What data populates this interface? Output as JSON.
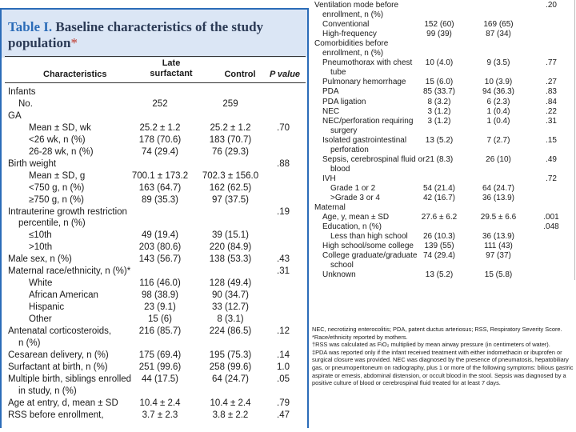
{
  "table": {
    "label": "Table I.",
    "title": "Baseline characteristics of the study population",
    "title_mark": "*"
  },
  "columns": {
    "characteristics": "Characteristics",
    "late": "Late surfactant",
    "control": "Control",
    "p": "P value"
  },
  "left_rows": [
    {
      "label": "Infants",
      "late": "",
      "control": "",
      "p": ""
    },
    {
      "label": "No.",
      "late": "252",
      "control": "259",
      "p": ""
    },
    {
      "label": "GA",
      "late": "",
      "control": "",
      "p": ""
    },
    {
      "label": "Mean ± SD, wk",
      "late": "25.2 ± 1.2",
      "control": "25.2 ± 1.2",
      "p": ".70"
    },
    {
      "label": "<26 wk, n (%)",
      "late": "178 (70.6)",
      "control": "183 (70.7)",
      "p": ""
    },
    {
      "label": "26-28 wk, n (%)",
      "late": "74 (29.4)",
      "control": "76 (29.3)",
      "p": ""
    },
    {
      "label": "Birth weight",
      "late": "",
      "control": "",
      "p": ".88"
    },
    {
      "label": "Mean ± SD, g",
      "late": "700.1 ± 173.2",
      "control": "702.3 ± 156.0",
      "p": ""
    },
    {
      "label": "<750 g, n (%)",
      "late": "163 (64.7)",
      "control": "162 (62.5)",
      "p": ""
    },
    {
      "label": "≥750 g, n (%)",
      "late": "89 (35.3)",
      "control": "97 (37.5)",
      "p": ""
    },
    {
      "label": "Intrauterine growth restriction",
      "late": "",
      "control": "",
      "p": ".19"
    },
    {
      "label": "percentile, n (%)",
      "late": "",
      "control": "",
      "p": ""
    },
    {
      "label": "≤10th",
      "late": "49 (19.4)",
      "control": "39 (15.1)",
      "p": ""
    },
    {
      "label": ">10th",
      "late": "203 (80.6)",
      "control": "220 (84.9)",
      "p": ""
    },
    {
      "label": "Male sex, n (%)",
      "late": "143 (56.7)",
      "control": "138 (53.3)",
      "p": ".43"
    },
    {
      "label": "Maternal race/ethnicity, n (%)*",
      "late": "",
      "control": "",
      "p": ".31"
    },
    {
      "label": "White",
      "late": "116 (46.0)",
      "control": "128 (49.4)",
      "p": ""
    },
    {
      "label": "African American",
      "late": "98 (38.9)",
      "control": "90 (34.7)",
      "p": ""
    },
    {
      "label": "Hispanic",
      "late": "23 (9.1)",
      "control": "33 (12.7)",
      "p": ""
    },
    {
      "label": "Other",
      "late": "15 (6)",
      "control": "8 (3.1)",
      "p": ""
    },
    {
      "label": "Antenatal corticosteroids,",
      "late": "216 (85.7)",
      "control": "224 (86.5)",
      "p": ".12"
    },
    {
      "label": "n (%)",
      "late": "",
      "control": "",
      "p": ""
    },
    {
      "label": "Cesarean delivery, n (%)",
      "late": "175 (69.4)",
      "control": "195 (75.3)",
      "p": ".14"
    },
    {
      "label": "Surfactant at birth, n (%)",
      "late": "251 (99.6)",
      "control": "258 (99.6)",
      "p": "1.0"
    },
    {
      "label": "Multiple birth, siblings enrolled",
      "late": "44 (17.5)",
      "control": "64 (24.7)",
      "p": ".05"
    },
    {
      "label": "in study, n (%)",
      "late": "",
      "control": "",
      "p": ""
    },
    {
      "label": "Age at entry, d, mean ± SD",
      "late": "10.4 ± 2.4",
      "control": "10.4 ± 2.4",
      "p": ".79"
    },
    {
      "label": "RSS before enrollment,",
      "late": "3.7 ± 2.3",
      "control": "3.8 ± 2.2",
      "p": ".47"
    }
  ],
  "right_rows": [
    {
      "label": "Ventilation mode before",
      "late": "",
      "control": "",
      "p": ".20"
    },
    {
      "label": "enrollment, n (%)",
      "late": "",
      "control": "",
      "p": ""
    },
    {
      "label": "Conventional",
      "late": "152 (60)",
      "control": "169 (65)",
      "p": ""
    },
    {
      "label": "High-frequency",
      "late": "99 (39)",
      "control": "87 (34)",
      "p": ""
    },
    {
      "label": "Comorbidities before",
      "late": "",
      "control": "",
      "p": ""
    },
    {
      "label": "enrollment, n (%)",
      "late": "",
      "control": "",
      "p": ""
    },
    {
      "label": "Pneumothorax with chest",
      "late": "10 (4.0)",
      "control": "9 (3.5)",
      "p": ".77"
    },
    {
      "label": "tube",
      "late": "",
      "control": "",
      "p": ""
    },
    {
      "label": "Pulmonary hemorrhage",
      "late": "15 (6.0)",
      "control": "10 (3.9)",
      "p": ".27"
    },
    {
      "label": "PDA",
      "late": "85 (33.7)",
      "control": "94 (36.3)",
      "p": ".83"
    },
    {
      "label": "PDA ligation",
      "late": "8 (3.2)",
      "control": "6 (2.3)",
      "p": ".84"
    },
    {
      "label": "NEC",
      "late": "3 (1.2)",
      "control": "1 (0.4)",
      "p": ".22"
    },
    {
      "label": "NEC/perforation requiring",
      "late": "3 (1.2)",
      "control": "1 (0.4)",
      "p": ".31"
    },
    {
      "label": "surgery",
      "late": "",
      "control": "",
      "p": ""
    },
    {
      "label": "Isolated gastrointestinal",
      "late": "13 (5.2)",
      "control": "7 (2.7)",
      "p": ".15"
    },
    {
      "label": "perforation",
      "late": "",
      "control": "",
      "p": ""
    },
    {
      "label": "Sepsis, cerebrospinal fluid or",
      "late": "21 (8.3)",
      "control": "26 (10)",
      "p": ".49"
    },
    {
      "label": "blood",
      "late": "",
      "control": "",
      "p": ""
    },
    {
      "label": "IVH",
      "late": "",
      "control": "",
      "p": ".72"
    },
    {
      "label": "Grade 1 or 2",
      "late": "54 (21.4)",
      "control": "64 (24.7)",
      "p": ""
    },
    {
      "label": ">Grade 3 or 4",
      "late": "42 (16.7)",
      "control": "36 (13.9)",
      "p": ""
    },
    {
      "label": "Maternal",
      "late": "",
      "control": "",
      "p": ""
    },
    {
      "label": "Age, y, mean ± SD",
      "late": "27.6 ± 6.2",
      "control": "29.5 ± 6.6",
      "p": ".001"
    },
    {
      "label": "Education, n (%)",
      "late": "",
      "control": "",
      "p": ".048"
    },
    {
      "label": "Less than high school",
      "late": "26 (10.3)",
      "control": "36 (13.9)",
      "p": ""
    },
    {
      "label": "High school/some college",
      "late": "139 (55)",
      "control": "111 (43)",
      "p": ""
    },
    {
      "label": "College graduate/graduate",
      "late": "74 (29.4)",
      "control": "97 (37)",
      "p": ""
    },
    {
      "label": "school",
      "late": "",
      "control": "",
      "p": ""
    },
    {
      "label": "Unknown",
      "late": "13 (5.2)",
      "control": "15 (5.8)",
      "p": ""
    }
  ],
  "footnotes": [
    "NEC, necrotizing enterocolitis; PDA, patent ductus arteriosus; RSS, Respiratory Severity Score.",
    "*Race/ethnicity reported by mothers.",
    "†RSS was calculated as FiO₂ multiplied by mean airway pressure (in centimeters of water).",
    "‡PDA was reported only if the infant received treatment with either indomethacin or ibuprofen or surgical closure was provided. NEC was diagnosed by the presence of pneumatosis, hepatobiliary gas, or pneumoperitoneum on radiography, plus 1 or more of the following symptoms: bilious gastric aspirate or emesis, abdominal distension, or occult blood in the stool. Sepsis was diagnosed by a positive culture of blood or cerebrospinal fluid treated for at least 7 days."
  ]
}
